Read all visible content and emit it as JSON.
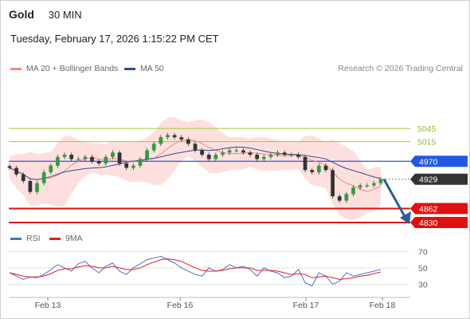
{
  "header": {
    "instrument": "Gold",
    "timeframe": "30 MIN",
    "datetime": "Tuesday, February 17, 2026 1:15:22 PM CET"
  },
  "legend": {
    "ma20": "MA 20 + Bollinger Bands",
    "ma50": "MA 50",
    "ma20_color": "#f08a82",
    "ma50_color": "#2c4f8c"
  },
  "credit": "Research © 2026 Trading Central",
  "rsi_legend": {
    "rsi": "RSI",
    "ma": "9MA",
    "rsi_color": "#4a72c8",
    "ma_color": "#e02020"
  },
  "chart_data": [
    {
      "type": "candlestick",
      "series_name": "Gold",
      "x_ticks": [
        "Feb 13",
        "Feb 16",
        "Feb 17",
        "Feb 18"
      ],
      "y_range": [
        4810,
        5120
      ],
      "levels": [
        {
          "label": "5045",
          "value": 5045,
          "kind": "resistance",
          "color": "#9acd32"
        },
        {
          "label": "5015",
          "value": 5015,
          "kind": "resistance",
          "color": "#9acd32"
        },
        {
          "label": "4970",
          "value": 4970,
          "kind": "pivot",
          "color": "#2457e6"
        },
        {
          "label": "4929",
          "value": 4929,
          "kind": "last",
          "color": "#333333"
        },
        {
          "label": "4862",
          "value": 4862,
          "kind": "support",
          "color": "#e01010"
        },
        {
          "label": "4830",
          "value": 4830,
          "kind": "support",
          "color": "#e01010"
        }
      ],
      "close_path": [
        4955,
        4940,
        4925,
        4900,
        4920,
        4945,
        4960,
        4980,
        4985,
        4975,
        4975,
        4980,
        4970,
        4965,
        4980,
        4990,
        4965,
        4955,
        4960,
        4975,
        4995,
        5010,
        5025,
        5030,
        5025,
        5020,
        5010,
        4995,
        4985,
        4975,
        4985,
        4990,
        4995,
        4995,
        4990,
        4985,
        4975,
        4980,
        4985,
        4990,
        4985,
        4985,
        4980,
        4950,
        4945,
        4960,
        4950,
        4890,
        4880,
        4895,
        4910,
        4915,
        4915,
        4920,
        4929
      ],
      "projection": {
        "from": 4929,
        "to": 4830
      }
    },
    {
      "type": "line",
      "title": "RSI",
      "y_ticks": [
        70,
        50,
        30
      ],
      "y_range": [
        15,
        80
      ],
      "series": [
        {
          "name": "RSI",
          "values": [
            44,
            40,
            36,
            39,
            38,
            42,
            48,
            54,
            50,
            46,
            55,
            58,
            50,
            44,
            52,
            56,
            46,
            42,
            50,
            55,
            60,
            62,
            64,
            60,
            56,
            50,
            46,
            42,
            40,
            50,
            46,
            48,
            54,
            50,
            52,
            48,
            40,
            50,
            46,
            44,
            38,
            40,
            48,
            32,
            28,
            44,
            40,
            30,
            34,
            44,
            40,
            42,
            44,
            46,
            48
          ]
        },
        {
          "name": "9MA",
          "values": [
            44,
            42,
            40,
            39,
            39,
            40,
            43,
            47,
            49,
            49,
            51,
            53,
            52,
            50,
            50,
            52,
            50,
            48,
            48,
            50,
            54,
            57,
            60,
            61,
            60,
            58,
            54,
            50,
            47,
            46,
            46,
            47,
            49,
            50,
            50,
            50,
            47,
            47,
            47,
            46,
            44,
            42,
            43,
            42,
            38,
            39,
            40,
            38,
            36,
            37,
            38,
            40,
            41,
            43,
            45
          ]
        }
      ]
    }
  ]
}
